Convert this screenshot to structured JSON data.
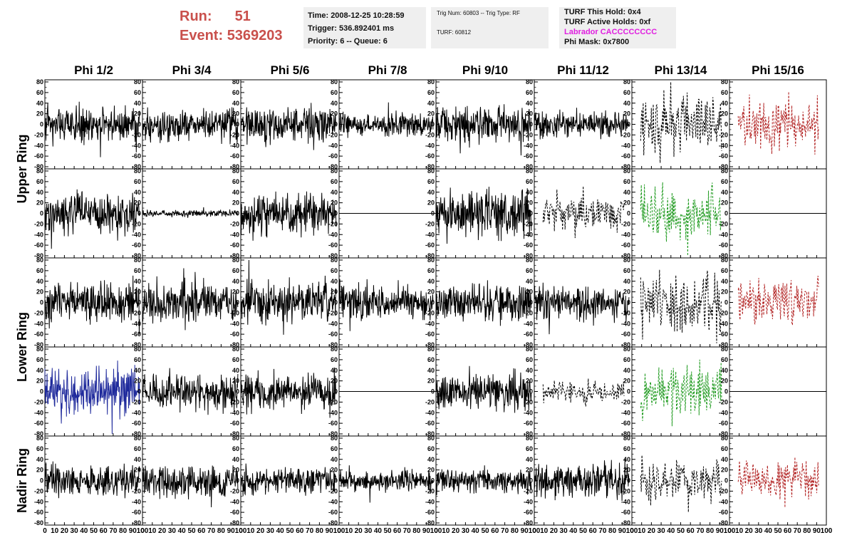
{
  "header": {
    "run_label": "Run:",
    "run_value": "51",
    "event_label": "Event:",
    "event_value": "5369203"
  },
  "info_time": {
    "time": "Time: 2008-12-25 10:28:59",
    "trigger": "Trigger: 536.892401 ms",
    "priority": "Priority: 6 -- Queue: 6"
  },
  "info_trig": {
    "trig": "Trig Num: 60803 -- Trig Type: RF",
    "turf": "TURF: 60812"
  },
  "info_turf": {
    "this_hold": "TURF This Hold: 0x4",
    "active_holds": "TURF Active Holds: 0xf",
    "labrador": "Labrador CACCCCCCCC",
    "phi_mask": "Phi Mask: 0x7800"
  },
  "colors": {
    "header_red": "#c9504c",
    "labrador_magenta": "#e01ee0",
    "trace_black": "#000000",
    "trace_blue": "#1f2a9c",
    "trace_green": "#1e9a1e",
    "trace_red": "#b22222"
  },
  "chart_data": {
    "type": "line",
    "columns": [
      "Phi 1/2",
      "Phi 3/4",
      "Phi 5/6",
      "Phi 7/8",
      "Phi 9/10",
      "Phi 11/12",
      "Phi 13/14",
      "Phi 15/16"
    ],
    "row_groups": [
      "Upper Ring",
      "Lower Ring",
      "Nadir Ring"
    ],
    "ylim": [
      -80,
      80
    ],
    "yticks": [
      -80,
      -60,
      -40,
      -20,
      0,
      20,
      40,
      60,
      80
    ],
    "xlim": [
      0,
      100
    ],
    "xticks": [
      0,
      10,
      20,
      30,
      40,
      50,
      60,
      70,
      80,
      90,
      100
    ],
    "panels": [
      [
        {
          "amp": 17,
          "style": "solid",
          "color": "black",
          "seed": 11
        },
        {
          "amp": 14,
          "style": "solid",
          "color": "black",
          "seed": 12
        },
        {
          "amp": 17,
          "style": "solid",
          "color": "black",
          "seed": 13
        },
        {
          "amp": 10,
          "style": "solid",
          "color": "black",
          "seed": 14
        },
        {
          "amp": 16,
          "style": "solid",
          "color": "black",
          "seed": 15
        },
        {
          "amp": 12,
          "style": "solid",
          "color": "black",
          "seed": 16
        },
        {
          "amp": 28,
          "style": "dashed",
          "color": "black",
          "seed": 17
        },
        {
          "amp": 25,
          "style": "dashed",
          "color": "red",
          "seed": 18
        }
      ],
      [
        {
          "amp": 18,
          "style": "solid",
          "color": "black",
          "seed": 21
        },
        {
          "amp": 3,
          "style": "solid",
          "color": "black",
          "seed": 22
        },
        {
          "amp": 18,
          "style": "solid",
          "color": "black",
          "seed": 23
        },
        {
          "amp": 0,
          "style": "flat",
          "color": "black",
          "seed": 24
        },
        {
          "amp": 22,
          "style": "solid",
          "color": "black",
          "seed": 25
        },
        {
          "amp": 15,
          "style": "dashed",
          "color": "black",
          "seed": 26
        },
        {
          "amp": 25,
          "style": "dashed",
          "color": "green",
          "seed": 27
        },
        {
          "amp": 0,
          "style": "flat",
          "color": "black",
          "seed": 28
        }
      ],
      [
        {
          "amp": 18,
          "style": "solid",
          "color": "black",
          "seed": 31
        },
        {
          "amp": 18,
          "style": "solid",
          "color": "black",
          "seed": 32
        },
        {
          "amp": 20,
          "style": "solid",
          "color": "black",
          "seed": 33
        },
        {
          "amp": 16,
          "style": "solid",
          "color": "black",
          "seed": 34
        },
        {
          "amp": 17,
          "style": "solid",
          "color": "black",
          "seed": 35
        },
        {
          "amp": 15,
          "style": "solid",
          "color": "black",
          "seed": 36
        },
        {
          "amp": 28,
          "style": "dashed",
          "color": "black",
          "seed": 37
        },
        {
          "amp": 22,
          "style": "dashed",
          "color": "red",
          "seed": 38
        }
      ],
      [
        {
          "amp": 22,
          "style": "solid",
          "color": "blue",
          "seed": 41
        },
        {
          "amp": 16,
          "style": "solid",
          "color": "black",
          "seed": 42
        },
        {
          "amp": 16,
          "style": "solid",
          "color": "black",
          "seed": 43
        },
        {
          "amp": 0,
          "style": "flat",
          "color": "black",
          "seed": 44
        },
        {
          "amp": 17,
          "style": "solid",
          "color": "black",
          "seed": 45
        },
        {
          "amp": 10,
          "style": "dashed",
          "color": "black",
          "seed": 46
        },
        {
          "amp": 25,
          "style": "dashed",
          "color": "green",
          "seed": 47
        },
        {
          "amp": 0,
          "style": "flat",
          "color": "black",
          "seed": 48
        }
      ],
      [
        {
          "amp": 14,
          "style": "solid",
          "color": "black",
          "seed": 51
        },
        {
          "amp": 14,
          "style": "solid",
          "color": "black",
          "seed": 52
        },
        {
          "amp": 12,
          "style": "solid",
          "color": "black",
          "seed": 53
        },
        {
          "amp": 9,
          "style": "solid",
          "color": "black",
          "seed": 54
        },
        {
          "amp": 11,
          "style": "solid",
          "color": "black",
          "seed": 55
        },
        {
          "amp": 14,
          "style": "solid",
          "color": "black",
          "seed": 56
        },
        {
          "amp": 20,
          "style": "dashed",
          "color": "black",
          "seed": 57
        },
        {
          "amp": 20,
          "style": "dashed",
          "color": "red",
          "seed": 58
        }
      ]
    ]
  }
}
